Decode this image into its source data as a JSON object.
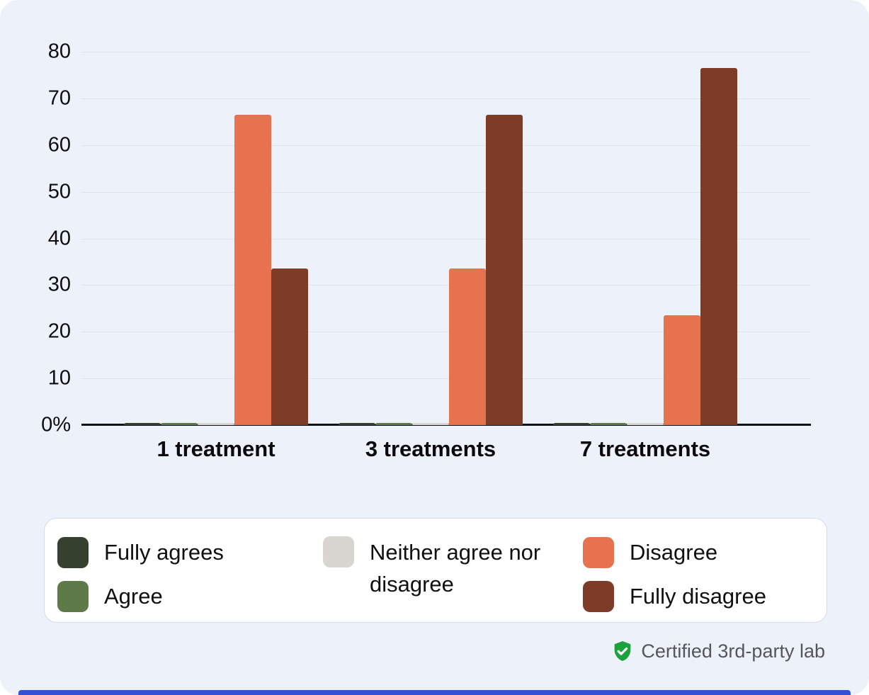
{
  "chart_data": {
    "type": "bar",
    "title": "",
    "xlabel": "",
    "ylabel": "%",
    "ylim": [
      0,
      80
    ],
    "yticks": [
      "80",
      "70",
      "60",
      "50",
      "40",
      "30",
      "20",
      "10",
      "0%"
    ],
    "grid": true,
    "legend_position": "bottom",
    "categories": [
      "1 treatment",
      "3 treatments",
      "7 treatments"
    ],
    "series": [
      {
        "name": "Fully agrees",
        "color": "#36402e",
        "values": [
          0.5,
          0.5,
          0.5
        ]
      },
      {
        "name": "Agree",
        "color": "#5f7a49",
        "values": [
          0.5,
          0.5,
          0.5
        ]
      },
      {
        "name": "Neither agree nor disagree",
        "color": "#d9d6d1",
        "values": [
          0.5,
          0.5,
          0.5
        ]
      },
      {
        "name": "Disagree",
        "color": "#e7724e",
        "values": [
          66.5,
          33.5,
          23.5
        ]
      },
      {
        "name": "Fully disagree",
        "color": "#7e3b27",
        "values": [
          33.5,
          66.5,
          76.5
        ]
      }
    ]
  },
  "legend": {
    "items": [
      {
        "label": "Fully agrees",
        "color": "#36402e"
      },
      {
        "label": "Agree",
        "color": "#5f7a49"
      },
      {
        "label": "Neither agree nor disagree",
        "color": "#d9d6d1"
      },
      {
        "label": "Disagree",
        "color": "#e7724e"
      },
      {
        "label": "Fully disagree",
        "color": "#7e3b27"
      }
    ]
  },
  "footer": {
    "certification": "Certified 3rd-party lab"
  },
  "colors": {
    "background": "#edf1fa",
    "grid": "#dfe3ee",
    "axis": "#111214",
    "accent_bar": "#3351d4",
    "badge_green": "#1ca23c"
  }
}
